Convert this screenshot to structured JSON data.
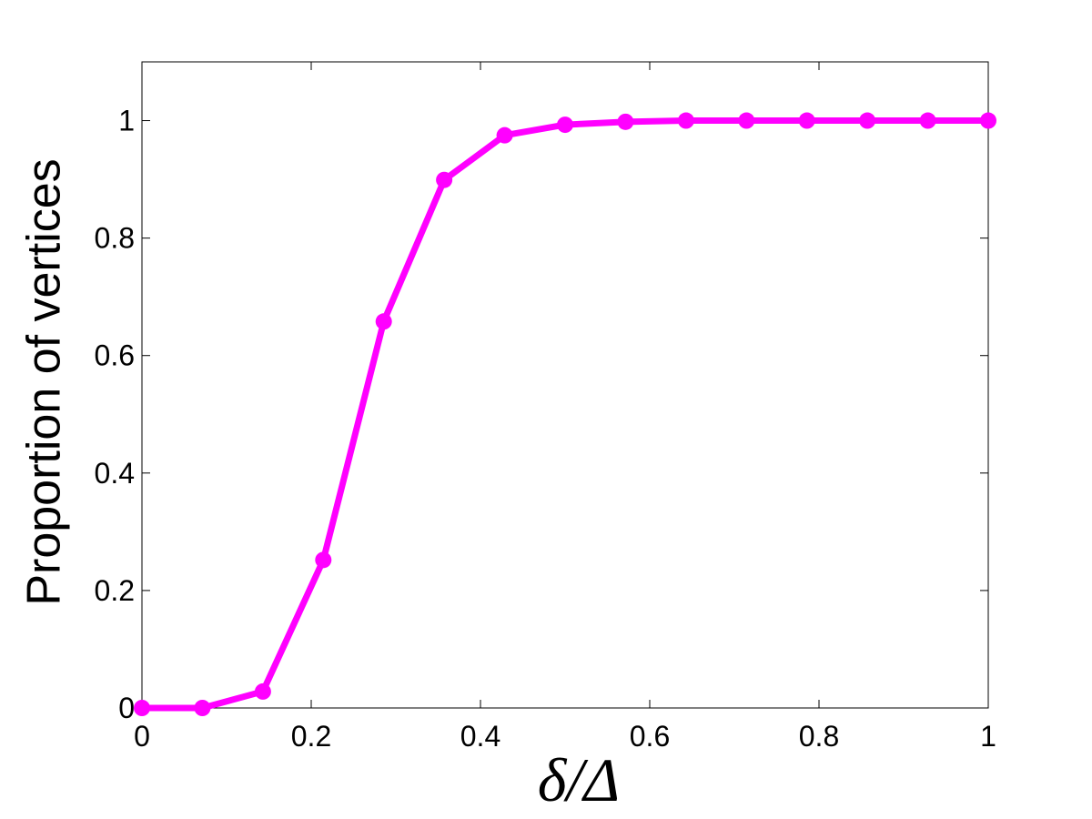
{
  "chart_data": {
    "type": "line",
    "xlabel": "δ/Δ",
    "ylabel": "Proportion of vertices",
    "x": [
      0,
      0.0714,
      0.1429,
      0.2143,
      0.2857,
      0.3571,
      0.4286,
      0.5,
      0.5714,
      0.6429,
      0.7143,
      0.7857,
      0.8571,
      0.9286,
      1
    ],
    "series": [
      {
        "color": "#ff00ff",
        "values": [
          0,
          0,
          0.028,
          0.252,
          0.658,
          0.899,
          0.975,
          0.993,
          0.998,
          1,
          1,
          1,
          1,
          1,
          1
        ]
      }
    ],
    "xlim": [
      0,
      1
    ],
    "xticks": [
      0,
      0.2,
      0.4,
      0.6,
      0.8,
      1
    ],
    "ylim": [
      0,
      1.1
    ],
    "yticks": [
      0,
      0.2,
      0.4,
      0.6,
      0.8,
      1
    ],
    "grid": false
  }
}
